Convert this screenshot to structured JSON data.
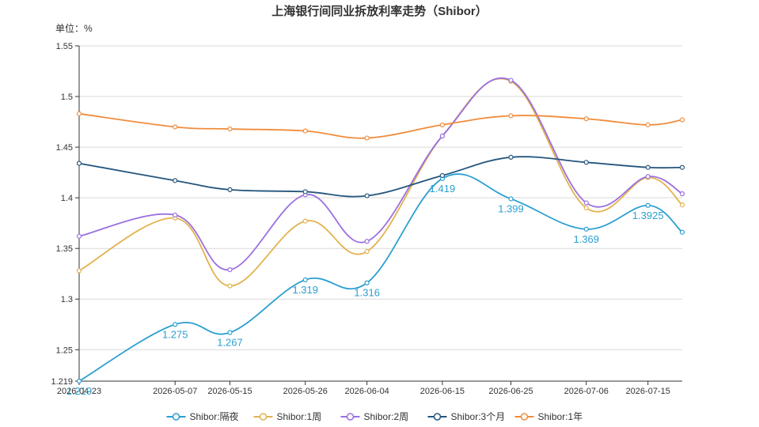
{
  "chart_data": {
    "type": "line",
    "title": "上海银行间同业拆放利率走势（Shibor）",
    "unit_label": "单位：%",
    "ylim": [
      1.219,
      1.55
    ],
    "y_ticks": [
      "1.219",
      "1.25",
      "1.3",
      "1.35",
      "1.4",
      "1.45",
      "1.5",
      "1.55"
    ],
    "x_ticks": [
      "2026-04-23",
      "2026-05-07",
      "2026-05-15",
      "2026-05-26",
      "2026-06-04",
      "2026-06-15",
      "2026-06-25",
      "2026-07-06",
      "2026-07-15"
    ],
    "x": [
      "2026-04-23",
      "2026-05-07",
      "2026-05-15",
      "2026-05-26",
      "2026-06-04",
      "2026-06-15",
      "2026-06-25",
      "2026-07-06",
      "2026-07-15",
      "2026-07-20"
    ],
    "series": [
      {
        "name": "Shibor:隔夜",
        "color": "#2b9fd0",
        "values": [
          1.219,
          1.275,
          1.267,
          1.319,
          1.316,
          1.419,
          1.399,
          1.369,
          1.3925,
          1.366
        ]
      },
      {
        "name": "Shibor:1周",
        "color": "#e3b24e",
        "values": [
          1.328,
          1.38,
          1.313,
          1.377,
          1.347,
          1.461,
          1.515,
          1.39,
          1.42,
          1.393
        ]
      },
      {
        "name": "Shibor:2周",
        "color": "#9b6fe0",
        "values": [
          1.362,
          1.383,
          1.329,
          1.403,
          1.357,
          1.461,
          1.516,
          1.395,
          1.421,
          1.404
        ]
      },
      {
        "name": "Shibor:3个月",
        "color": "#24557d",
        "values": [
          1.434,
          1.417,
          1.408,
          1.406,
          1.402,
          1.422,
          1.44,
          1.435,
          1.43,
          1.43
        ]
      },
      {
        "name": "Shibor:1年",
        "color": "#f08c3c",
        "values": [
          1.483,
          1.47,
          1.468,
          1.466,
          1.459,
          1.472,
          1.481,
          1.478,
          1.472,
          1.477
        ]
      }
    ],
    "data_labels": [
      {
        "x": "2026-04-23",
        "y": 1.219,
        "text": "1.219"
      },
      {
        "x": "2026-05-07",
        "y": 1.275,
        "text": "1.275"
      },
      {
        "x": "2026-05-15",
        "y": 1.267,
        "text": "1.267"
      },
      {
        "x": "2026-05-26",
        "y": 1.319,
        "text": "1.319"
      },
      {
        "x": "2026-06-04",
        "y": 1.316,
        "text": "1.316"
      },
      {
        "x": "2026-06-15",
        "y": 1.419,
        "text": "1.419"
      },
      {
        "x": "2026-06-25",
        "y": 1.399,
        "text": "1.399"
      },
      {
        "x": "2026-07-06",
        "y": 1.369,
        "text": "1.369"
      },
      {
        "x": "2026-07-15",
        "y": 1.3925,
        "text": "1.3925"
      }
    ],
    "grid": true,
    "legend_position": "bottom-center"
  }
}
